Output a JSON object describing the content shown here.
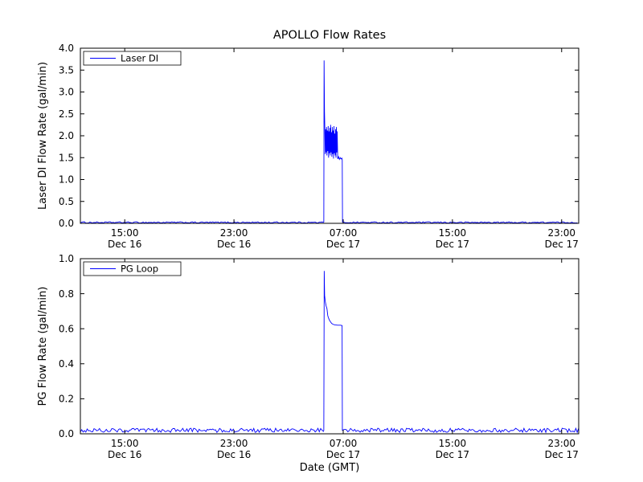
{
  "figure": {
    "background": "#ffffff",
    "axes_color": "#000000"
  },
  "chart_data": [
    {
      "type": "line",
      "title": "APOLLO Flow Rates",
      "ylabel": "Laser DI Flow Rate (gal/min)",
      "xlabel": "",
      "x_unit": "hours since Dec 16 00:00 GMT",
      "xlim": [
        11.75,
        48.25
      ],
      "ylim": [
        0,
        4
      ],
      "yticks": {
        "values": [
          0,
          0.5,
          1,
          1.5,
          2,
          2.5,
          3,
          3.5,
          4
        ],
        "labels": [
          "0.0",
          "0.5",
          "1.0",
          "1.5",
          "2.0",
          "2.5",
          "3.0",
          "3.5",
          "4.0"
        ]
      },
      "xticks": {
        "values": [
          15,
          23,
          31,
          39,
          47
        ],
        "time_labels": [
          "15:00",
          "23:00",
          "07:00",
          "15:00",
          "23:00"
        ],
        "date_labels": [
          "Dec 16",
          "Dec 16",
          "Dec 17",
          "Dec 17",
          "Dec 17"
        ]
      },
      "legend": {
        "label": "Laser DI",
        "position": "upper-left"
      },
      "series": [
        {
          "name": "Laser DI",
          "color": "#0000ff",
          "baseline": 0.02,
          "noise": 0.015,
          "spike_points": [
            [
              29.58,
              0.03
            ],
            [
              29.6,
              3.72
            ],
            [
              29.63,
              2.55
            ],
            [
              29.66,
              2.1
            ],
            [
              29.69,
              1.58
            ],
            [
              29.72,
              2.15
            ],
            [
              29.75,
              1.62
            ],
            [
              29.78,
              2.2
            ],
            [
              29.81,
              1.55
            ],
            [
              29.84,
              2.12
            ],
            [
              29.87,
              1.65
            ],
            [
              29.9,
              2.22
            ],
            [
              29.93,
              1.5
            ],
            [
              29.96,
              2.1
            ],
            [
              29.99,
              1.6
            ],
            [
              30.02,
              2.18
            ],
            [
              30.05,
              1.55
            ],
            [
              30.08,
              2.25
            ],
            [
              30.11,
              1.62
            ],
            [
              30.14,
              2.08
            ],
            [
              30.17,
              1.52
            ],
            [
              30.2,
              2.2
            ],
            [
              30.23,
              1.58
            ],
            [
              30.26,
              2.12
            ],
            [
              30.29,
              1.48
            ],
            [
              30.32,
              2.22
            ],
            [
              30.35,
              1.6
            ],
            [
              30.38,
              2.05
            ],
            [
              30.41,
              1.55
            ],
            [
              30.44,
              2.15
            ],
            [
              30.47,
              1.5
            ],
            [
              30.5,
              2.2
            ],
            [
              30.53,
              1.62
            ],
            [
              30.56,
              2.1
            ],
            [
              30.6,
              1.47
            ],
            [
              30.66,
              1.52
            ],
            [
              30.72,
              1.46
            ],
            [
              30.78,
              1.5
            ],
            [
              30.84,
              1.47
            ],
            [
              30.9,
              1.49
            ],
            [
              30.93,
              1.46
            ],
            [
              30.95,
              0.03
            ]
          ]
        }
      ]
    },
    {
      "type": "line",
      "title": "",
      "ylabel": "PG Flow Rate (gal/min)",
      "xlabel": "Date (GMT)",
      "x_unit": "hours since Dec 16 00:00 GMT",
      "xlim": [
        11.75,
        48.25
      ],
      "ylim": [
        0,
        1
      ],
      "yticks": {
        "values": [
          0,
          0.2,
          0.4,
          0.6,
          0.8,
          1
        ],
        "labels": [
          "0.0",
          "0.2",
          "0.4",
          "0.6",
          "0.8",
          "1.0"
        ]
      },
      "xticks": {
        "values": [
          15,
          23,
          31,
          39,
          47
        ],
        "time_labels": [
          "15:00",
          "23:00",
          "07:00",
          "15:00",
          "23:00"
        ],
        "date_labels": [
          "Dec 16",
          "Dec 16",
          "Dec 17",
          "Dec 17",
          "Dec 17"
        ]
      },
      "legend": {
        "label": "PG Loop",
        "position": "upper-left"
      },
      "series": [
        {
          "name": "PG Loop",
          "color": "#0000ff",
          "baseline": 0.02,
          "noise": 0.012,
          "spike_points": [
            [
              29.58,
              0.02
            ],
            [
              29.61,
              0.93
            ],
            [
              29.64,
              0.79
            ],
            [
              29.69,
              0.755
            ],
            [
              29.75,
              0.73
            ],
            [
              29.81,
              0.715
            ],
            [
              29.87,
              0.675
            ],
            [
              29.93,
              0.66
            ],
            [
              30.0,
              0.648
            ],
            [
              30.08,
              0.638
            ],
            [
              30.16,
              0.63
            ],
            [
              30.26,
              0.625
            ],
            [
              30.4,
              0.622
            ],
            [
              30.6,
              0.62
            ],
            [
              30.8,
              0.62
            ],
            [
              30.92,
              0.618
            ],
            [
              30.94,
              0.02
            ]
          ]
        }
      ]
    }
  ]
}
